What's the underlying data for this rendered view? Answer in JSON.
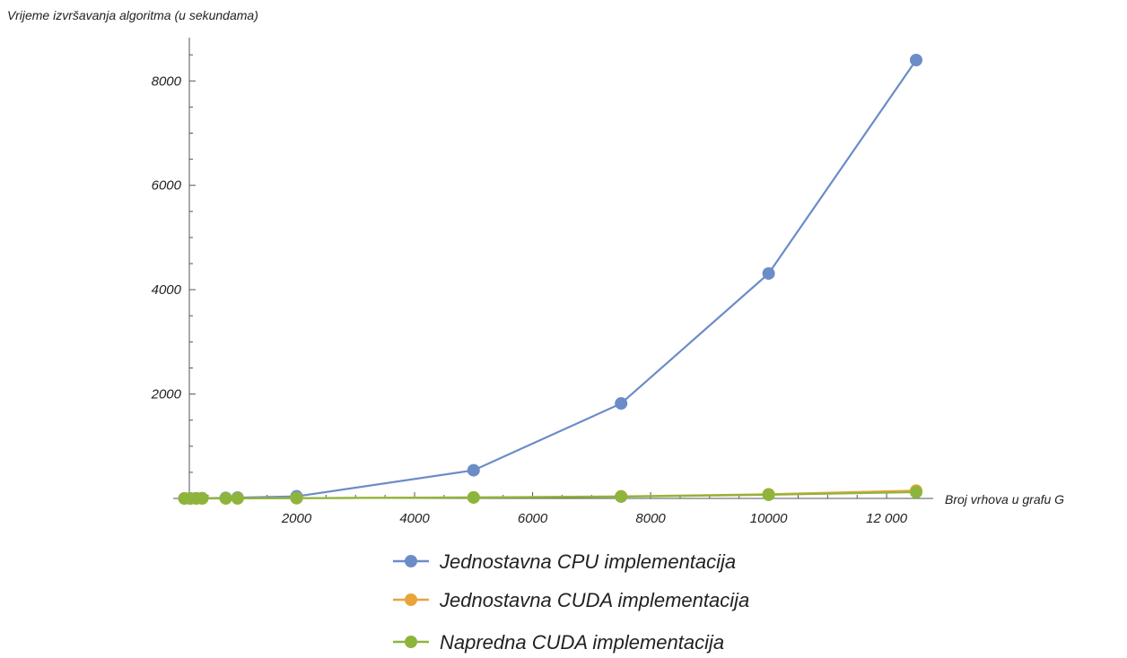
{
  "chart_data": {
    "type": "line",
    "title": "",
    "xlabel": "Broj vrhova u grafu G",
    "ylabel": "Vrijeme izvršavanja algoritma (u sekundama)",
    "xlim": [
      0,
      12500
    ],
    "ylim": [
      0,
      8400
    ],
    "x_ticks": [
      2000,
      4000,
      6000,
      8000,
      10000,
      12000
    ],
    "x_tick_labels": [
      "2000",
      "4000",
      "6000",
      "8000",
      "10000",
      "12 000"
    ],
    "y_ticks": [
      2000,
      4000,
      6000,
      8000
    ],
    "y_tick_labels": [
      "2000",
      "4000",
      "6000",
      "8000"
    ],
    "grid": false,
    "legend_position": "bottom",
    "series": [
      {
        "name": "Jednostavna CPU implementacija",
        "color": "#6b8cc7",
        "points": [
          [
            100,
            0.5
          ],
          [
            200,
            1
          ],
          [
            300,
            2
          ],
          [
            400,
            4
          ],
          [
            800,
            10
          ],
          [
            1000,
            15
          ],
          [
            2000,
            40
          ],
          [
            5000,
            540
          ],
          [
            7500,
            1820
          ],
          [
            10000,
            4310
          ],
          [
            12500,
            8400
          ]
        ]
      },
      {
        "name": "Jednostavna CUDA implementacija",
        "color": "#e8a43b",
        "points": [
          [
            100,
            0.1
          ],
          [
            200,
            0.2
          ],
          [
            300,
            0.4
          ],
          [
            400,
            0.6
          ],
          [
            800,
            1.5
          ],
          [
            1000,
            2
          ],
          [
            2000,
            6
          ],
          [
            5000,
            20
          ],
          [
            7500,
            40
          ],
          [
            10000,
            80
          ],
          [
            12500,
            150
          ]
        ]
      },
      {
        "name": "Napredna CUDA implementacija",
        "color": "#8db53c",
        "points": [
          [
            100,
            0.1
          ],
          [
            200,
            0.2
          ],
          [
            300,
            0.3
          ],
          [
            400,
            0.5
          ],
          [
            800,
            1.2
          ],
          [
            1000,
            1.8
          ],
          [
            2000,
            5
          ],
          [
            5000,
            18
          ],
          [
            7500,
            35
          ],
          [
            10000,
            70
          ],
          [
            12500,
            120
          ]
        ]
      }
    ]
  }
}
